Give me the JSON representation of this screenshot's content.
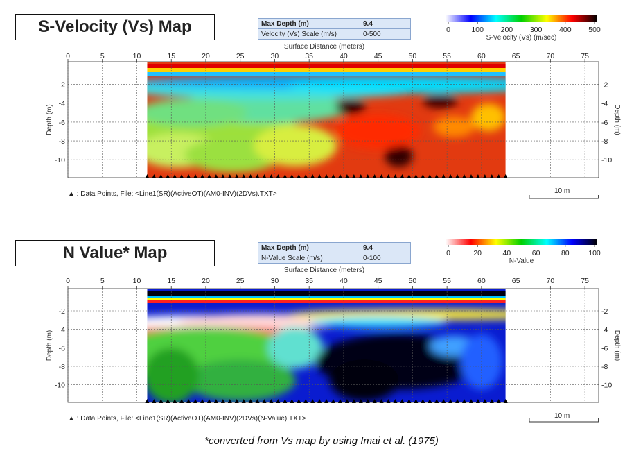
{
  "panels": [
    {
      "title": "S-Velocity (Vs) Map",
      "info": [
        {
          "label": "Max Depth (m)",
          "value": "9.4"
        },
        {
          "label": "Velocity (Vs) Scale (m/s)",
          "value": "0-500"
        }
      ],
      "colorbar": {
        "label": "S-Velocity (Vs) (m/sec)",
        "ticks": [
          "0",
          "100",
          "200",
          "300",
          "400",
          "500"
        ],
        "stops": [
          "#ffffff",
          "#0000ff",
          "#00ffff",
          "#00d000",
          "#ffff00",
          "#ff0000",
          "#000000"
        ]
      },
      "footer": "▲ : Data Points,  File: <Line1(SR)(ActiveOT)(AM0-INV)(2DVs).TXT>",
      "scale_label": "10 m"
    },
    {
      "title": "N Value* Map",
      "info": [
        {
          "label": "Max Depth (m)",
          "value": "9.4"
        },
        {
          "label": "N-Value Scale (m/s)",
          "value": "0-100"
        }
      ],
      "colorbar": {
        "label": "N-Value",
        "ticks": [
          "0",
          "20",
          "40",
          "60",
          "80",
          "100"
        ],
        "stops": [
          "#ffffff",
          "#ff0000",
          "#ffff00",
          "#00d000",
          "#00ffff",
          "#0000ff",
          "#000000"
        ]
      },
      "footer": "▲ : Data Points,  File: <Line1(SR)(ActiveOT)(AM0-INV)(2DVs)(N-Value).TXT>",
      "scale_label": "10 m"
    }
  ],
  "chart_data": [
    {
      "type": "heatmap",
      "title": "S-Velocity (Vs) Map",
      "xlabel": "Surface Distance (meters)",
      "ylabel": "Depth (m)",
      "x_ticks": [
        0,
        5,
        10,
        15,
        20,
        25,
        30,
        35,
        40,
        45,
        50,
        55,
        60,
        65,
        70,
        75
      ],
      "y_ticks": [
        -2,
        -4,
        -6,
        -8,
        -10
      ],
      "xlim": [
        0,
        77
      ],
      "ylim": [
        -11.9,
        0.4
      ],
      "data_x_range": [
        11.5,
        63.5
      ],
      "color_range": [
        0,
        500
      ],
      "data_points_x": [
        11.5,
        12.5,
        13.5,
        14.5,
        15.5,
        16.5,
        17.5,
        18.5,
        19.5,
        20.5,
        21.5,
        22.5,
        23.5,
        24.5,
        25.5,
        26.5,
        27.5,
        28.5,
        29.5,
        30.5,
        31.5,
        32.5,
        33.5,
        34.5,
        35.5,
        36.5,
        37.5,
        38.5,
        39.5,
        40.5,
        41.5,
        42.5,
        43.5,
        44.5,
        45.5,
        46.5,
        47.5,
        48.5,
        49.5,
        50.5,
        51.5,
        52.5,
        53.5,
        54.5,
        55.5,
        56.5,
        57.5,
        58.5,
        59.5,
        60.5,
        61.5,
        62.5,
        63.5
      ]
    },
    {
      "type": "heatmap",
      "title": "N Value* Map",
      "xlabel": "Surface Distance (meters)",
      "ylabel": "Depth (m)",
      "x_ticks": [
        0,
        5,
        10,
        15,
        20,
        25,
        30,
        35,
        40,
        45,
        50,
        55,
        60,
        65,
        70,
        75
      ],
      "y_ticks": [
        -2,
        -4,
        -6,
        -8,
        -10
      ],
      "xlim": [
        0,
        77
      ],
      "ylim": [
        -11.9,
        0.4
      ],
      "data_x_range": [
        11.5,
        63.5
      ],
      "color_range": [
        0,
        100
      ],
      "data_points_x": [
        11.5,
        12.5,
        13.5,
        14.5,
        15.5,
        16.5,
        17.5,
        18.5,
        19.5,
        20.5,
        21.5,
        22.5,
        23.5,
        24.5,
        25.5,
        26.5,
        27.5,
        28.5,
        29.5,
        30.5,
        31.5,
        32.5,
        33.5,
        34.5,
        35.5,
        36.5,
        37.5,
        38.5,
        39.5,
        40.5,
        41.5,
        42.5,
        43.5,
        44.5,
        45.5,
        46.5,
        47.5,
        48.5,
        49.5,
        50.5,
        51.5,
        52.5,
        53.5,
        54.5,
        55.5,
        56.5,
        57.5,
        58.5,
        59.5,
        60.5,
        61.5,
        62.5,
        63.5
      ]
    }
  ],
  "footnote": "*converted from Vs map by using Imai et al. (1975)"
}
